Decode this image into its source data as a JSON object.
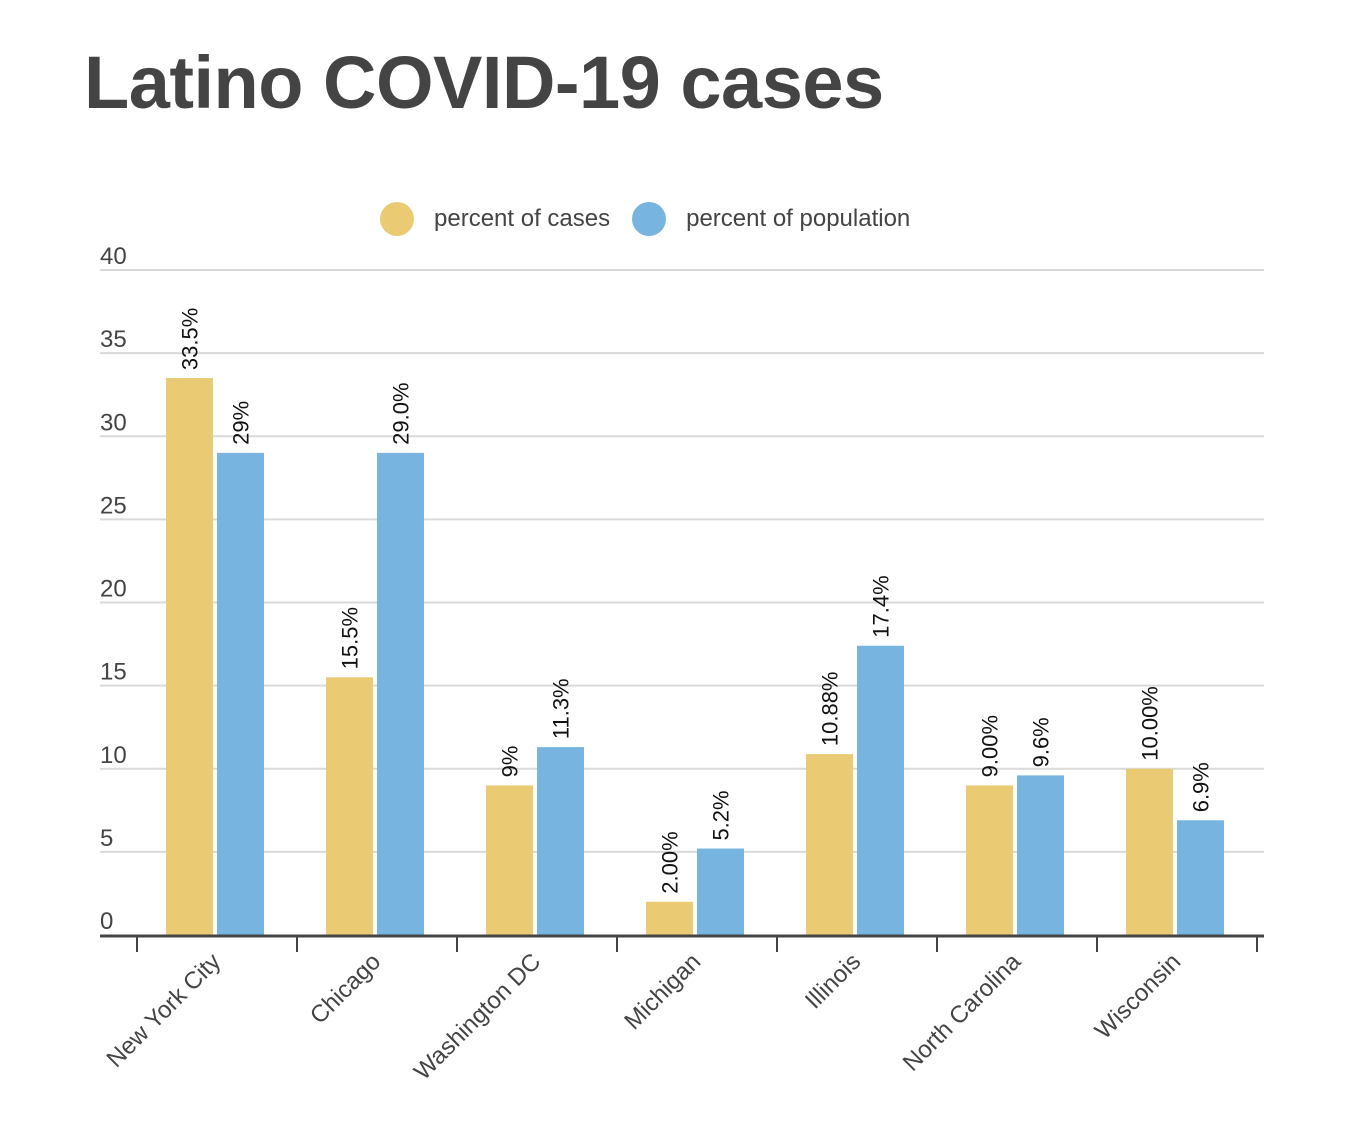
{
  "title": "Latino COVID-19 cases",
  "colors": {
    "cases": "#EACB74",
    "population": "#77B4E0",
    "grid": "#d9d9d9",
    "axis": "#444444",
    "text": "#444444"
  },
  "chart_data": {
    "type": "bar",
    "title": "Latino COVID-19 cases",
    "xlabel": "",
    "ylabel": "",
    "ylim": [
      0,
      40
    ],
    "yticks": [
      0,
      5,
      10,
      15,
      20,
      25,
      30,
      35,
      40
    ],
    "grid": true,
    "legend_position": "top-center",
    "categories": [
      "New York City",
      "Chicago",
      "Washington DC",
      "Michigan",
      "Illinois",
      "North Carolina",
      "Wisconsin"
    ],
    "series": [
      {
        "name": "percent of cases",
        "color": "#EACB74",
        "values": [
          33.5,
          15.5,
          9,
          2.0,
          10.88,
          9.0,
          10.0
        ],
        "labels": [
          "33.5%",
          "15.5%",
          "9%",
          "2.00%",
          "10.88%",
          "9.00%",
          "10.00%"
        ]
      },
      {
        "name": "percent of population",
        "color": "#77B4E0",
        "values": [
          29,
          29.0,
          11.3,
          5.2,
          17.4,
          9.6,
          6.9
        ],
        "labels": [
          "29%",
          "29.0%",
          "11.3%",
          "5.2%",
          "17.4%",
          "9.6%",
          "6.9%"
        ]
      }
    ]
  }
}
